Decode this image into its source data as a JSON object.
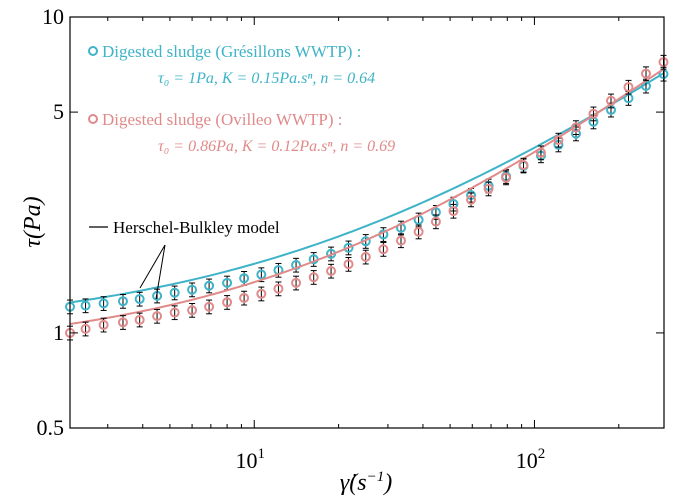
{
  "chart_data": {
    "type": "scatter",
    "xscale": "log",
    "yscale": "log",
    "xlim": [
      2.2,
      290
    ],
    "ylim": [
      0.5,
      10
    ],
    "xlabel_base": "γ̇",
    "xlabel_rest": "(s",
    "xlabel_sup": "−1",
    "xlabel_close": ")",
    "ylabel": "τ(Pa)",
    "x_ticks": [
      {
        "value": 10,
        "base": "10",
        "exp": "1"
      },
      {
        "value": 100,
        "base": "10",
        "exp": "2"
      }
    ],
    "y_ticks": [
      {
        "value": 0.5,
        "label": "0.5"
      },
      {
        "value": 1,
        "label": "1"
      },
      {
        "value": 5,
        "label": "5"
      },
      {
        "value": 10,
        "label": "10"
      }
    ],
    "grid": false,
    "legend_position": "top-left",
    "annotation": "Herschel-Bulkley model",
    "series": [
      {
        "name": "Digested sludge (Grésillons WWTP) :",
        "params": "τ₀ = 1Pa, K = 0.15Pa.sⁿ, n = 0.64",
        "color": "#3fb3c8",
        "model": {
          "tau0": 1.0,
          "K": 0.15,
          "n": 0.64
        },
        "points": [
          [
            2.2,
            1.21
          ],
          [
            2.5,
            1.22
          ],
          [
            2.9,
            1.24
          ],
          [
            3.4,
            1.26
          ],
          [
            3.9,
            1.28
          ],
          [
            4.5,
            1.31
          ],
          [
            5.2,
            1.34
          ],
          [
            6.0,
            1.37
          ],
          [
            6.9,
            1.41
          ],
          [
            8.0,
            1.44
          ],
          [
            9.2,
            1.49
          ],
          [
            10.6,
            1.53
          ],
          [
            12.2,
            1.58
          ],
          [
            14.1,
            1.64
          ],
          [
            16.3,
            1.71
          ],
          [
            18.8,
            1.78
          ],
          [
            21.7,
            1.86
          ],
          [
            25.0,
            1.95
          ],
          [
            28.9,
            2.05
          ],
          [
            33.4,
            2.15
          ],
          [
            38.6,
            2.28
          ],
          [
            44.5,
            2.41
          ],
          [
            51.4,
            2.56
          ],
          [
            59.4,
            2.73
          ],
          [
            68.6,
            2.92
          ],
          [
            79.2,
            3.13
          ],
          [
            91.4,
            3.38
          ],
          [
            105.5,
            3.64
          ],
          [
            121.8,
            3.94
          ],
          [
            140.7,
            4.27
          ],
          [
            162.4,
            4.66
          ],
          [
            187.6,
            5.08
          ],
          [
            216.6,
            5.53
          ],
          [
            250.1,
            6.05
          ],
          [
            288.8,
            6.6
          ]
        ]
      },
      {
        "name": "Digested sludge (Ovilleo WWTP) :",
        "params": "τ₀ = 0.86Pa, K = 0.12Pa.sⁿ, n = 0.69",
        "color": "#e08a8a",
        "model": {
          "tau0": 0.86,
          "K": 0.12,
          "n": 0.69
        },
        "points": [
          [
            2.2,
            1.0
          ],
          [
            2.5,
            1.03
          ],
          [
            2.9,
            1.06
          ],
          [
            3.4,
            1.08
          ],
          [
            3.9,
            1.1
          ],
          [
            4.5,
            1.13
          ],
          [
            5.2,
            1.16
          ],
          [
            6.0,
            1.18
          ],
          [
            6.9,
            1.21
          ],
          [
            8.0,
            1.25
          ],
          [
            9.2,
            1.29
          ],
          [
            10.6,
            1.33
          ],
          [
            12.2,
            1.38
          ],
          [
            14.1,
            1.44
          ],
          [
            16.3,
            1.5
          ],
          [
            18.8,
            1.57
          ],
          [
            21.7,
            1.65
          ],
          [
            25.0,
            1.74
          ],
          [
            28.9,
            1.84
          ],
          [
            33.4,
            1.96
          ],
          [
            38.6,
            2.09
          ],
          [
            44.5,
            2.25
          ],
          [
            51.4,
            2.43
          ],
          [
            59.4,
            2.64
          ],
          [
            68.6,
            2.86
          ],
          [
            79.2,
            3.1
          ],
          [
            91.4,
            3.4
          ],
          [
            105.5,
            3.72
          ],
          [
            121.8,
            4.08
          ],
          [
            140.7,
            4.47
          ],
          [
            162.4,
            4.94
          ],
          [
            187.6,
            5.43
          ],
          [
            216.6,
            6.0
          ],
          [
            250.1,
            6.62
          ],
          [
            288.8,
            7.2
          ]
        ]
      }
    ]
  }
}
